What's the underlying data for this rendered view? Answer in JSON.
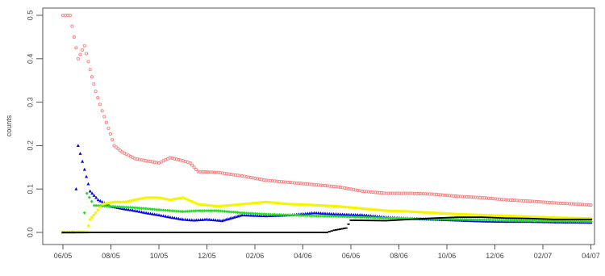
{
  "chart_data": {
    "type": "scatter",
    "title": "",
    "xlabel": "",
    "ylabel": "counts",
    "ylim": [
      0,
      0.5
    ],
    "y_ticks": [
      0.0,
      0.1,
      0.2,
      0.3,
      0.4,
      0.5
    ],
    "y_tick_labels": [
      "0.0",
      "0.1",
      "0.2",
      "0.3",
      "0.4",
      "0.5"
    ],
    "x_ticks": [
      "06/05",
      "08/05",
      "10/05",
      "12/05",
      "02/06",
      "04/06",
      "06/06",
      "08/06",
      "10/06",
      "12/06",
      "02/07",
      "04/07"
    ],
    "grid": false,
    "legend": "none",
    "series": [
      {
        "color": "#ff7a7a",
        "marker": "circle-open",
        "points": [
          [
            "2005-06-01",
            0.5
          ],
          [
            "2005-06-10",
            0.5
          ],
          [
            "2005-06-20",
            0.4
          ],
          [
            "2005-06-28",
            0.43
          ],
          [
            "2005-07-05",
            0.375
          ],
          [
            "2005-07-12",
            0.325
          ],
          [
            "2005-07-20",
            0.28
          ],
          [
            "2005-07-28",
            0.24
          ],
          [
            "2005-08-05",
            0.2
          ],
          [
            "2005-08-15",
            0.185
          ],
          [
            "2005-09-01",
            0.17
          ],
          [
            "2005-09-15",
            0.165
          ],
          [
            "2005-10-01",
            0.16
          ],
          [
            "2005-10-15",
            0.172
          ],
          [
            "2005-11-01",
            0.165
          ],
          [
            "2005-11-10",
            0.16
          ],
          [
            "2005-11-20",
            0.14
          ],
          [
            "2005-12-15",
            0.138
          ],
          [
            "2006-01-15",
            0.13
          ],
          [
            "2006-02-15",
            0.12
          ],
          [
            "2006-03-15",
            0.115
          ],
          [
            "2006-04-15",
            0.11
          ],
          [
            "2006-05-15",
            0.105
          ],
          [
            "2006-06-15",
            0.095
          ],
          [
            "2006-07-15",
            0.09
          ],
          [
            "2006-08-15",
            0.09
          ],
          [
            "2006-09-15",
            0.088
          ],
          [
            "2006-10-15",
            0.083
          ],
          [
            "2006-11-15",
            0.08
          ],
          [
            "2006-12-15",
            0.075
          ],
          [
            "2007-01-15",
            0.072
          ],
          [
            "2007-02-15",
            0.068
          ],
          [
            "2007-03-15",
            0.065
          ],
          [
            "2007-03-31",
            0.063
          ]
        ]
      },
      {
        "color": "#0000ee",
        "marker": "triangle",
        "points": [
          [
            "2005-06-01",
            0.0
          ],
          [
            "2005-06-15",
            0.0
          ],
          [
            "2005-06-20",
            0.2
          ],
          [
            "2005-06-28",
            0.145
          ],
          [
            "2005-07-05",
            0.095
          ],
          [
            "2005-07-15",
            0.075
          ],
          [
            "2005-08-01",
            0.06
          ],
          [
            "2005-08-15",
            0.055
          ],
          [
            "2005-09-01",
            0.05
          ],
          [
            "2005-09-15",
            0.045
          ],
          [
            "2005-10-01",
            0.04
          ],
          [
            "2005-10-15",
            0.035
          ],
          [
            "2005-11-01",
            0.03
          ],
          [
            "2005-11-15",
            0.028
          ],
          [
            "2005-12-01",
            0.03
          ],
          [
            "2005-12-20",
            0.027
          ],
          [
            "2006-01-15",
            0.04
          ],
          [
            "2006-02-15",
            0.038
          ],
          [
            "2006-03-15",
            0.04
          ],
          [
            "2006-04-15",
            0.045
          ],
          [
            "2006-05-15",
            0.042
          ],
          [
            "2006-06-15",
            0.04
          ],
          [
            "2006-07-15",
            0.035
          ],
          [
            "2006-08-15",
            0.032
          ],
          [
            "2006-09-15",
            0.03
          ],
          [
            "2006-10-15",
            0.028
          ],
          [
            "2006-11-15",
            0.026
          ],
          [
            "2006-12-15",
            0.025
          ],
          [
            "2007-01-15",
            0.025
          ],
          [
            "2007-02-15",
            0.024
          ],
          [
            "2007-03-31",
            0.023
          ]
        ]
      },
      {
        "color": "#22dd22",
        "marker": "diamond",
        "points": [
          [
            "2005-06-01",
            0.0
          ],
          [
            "2005-06-25",
            0.0
          ],
          [
            "2005-07-01",
            0.09
          ],
          [
            "2005-07-10",
            0.062
          ],
          [
            "2005-08-01",
            0.06
          ],
          [
            "2005-09-01",
            0.057
          ],
          [
            "2005-10-01",
            0.052
          ],
          [
            "2005-11-01",
            0.048
          ],
          [
            "2005-11-20",
            0.05
          ],
          [
            "2005-12-15",
            0.05
          ],
          [
            "2006-01-15",
            0.045
          ],
          [
            "2006-02-15",
            0.042
          ],
          [
            "2006-03-15",
            0.04
          ],
          [
            "2006-04-15",
            0.038
          ],
          [
            "2006-05-15",
            0.037
          ],
          [
            "2006-06-15",
            0.035
          ],
          [
            "2006-07-15",
            0.033
          ],
          [
            "2006-08-15",
            0.032
          ],
          [
            "2006-09-15",
            0.031
          ],
          [
            "2006-10-15",
            0.03
          ],
          [
            "2006-11-15",
            0.029
          ],
          [
            "2006-12-15",
            0.028
          ],
          [
            "2007-01-15",
            0.027
          ],
          [
            "2007-02-15",
            0.026
          ],
          [
            "2007-03-31",
            0.025
          ]
        ]
      },
      {
        "color": "#f5f500",
        "marker": "square",
        "points": [
          [
            "2005-06-01",
            0.0
          ],
          [
            "2005-07-01",
            0.0
          ],
          [
            "2005-07-05",
            0.03
          ],
          [
            "2005-07-12",
            0.045
          ],
          [
            "2005-07-20",
            0.065
          ],
          [
            "2005-08-05",
            0.07
          ],
          [
            "2005-08-20",
            0.07
          ],
          [
            "2005-09-01",
            0.075
          ],
          [
            "2005-09-15",
            0.08
          ],
          [
            "2005-10-01",
            0.08
          ],
          [
            "2005-10-15",
            0.075
          ],
          [
            "2005-11-01",
            0.08
          ],
          [
            "2005-11-20",
            0.065
          ],
          [
            "2005-12-15",
            0.06
          ],
          [
            "2006-01-15",
            0.065
          ],
          [
            "2006-02-15",
            0.07
          ],
          [
            "2006-03-15",
            0.065
          ],
          [
            "2006-04-15",
            0.063
          ],
          [
            "2006-05-15",
            0.06
          ],
          [
            "2006-06-15",
            0.055
          ],
          [
            "2006-07-15",
            0.05
          ],
          [
            "2006-08-15",
            0.048
          ],
          [
            "2006-09-15",
            0.045
          ],
          [
            "2006-10-15",
            0.042
          ],
          [
            "2006-11-15",
            0.04
          ],
          [
            "2006-12-15",
            0.038
          ],
          [
            "2007-01-15",
            0.036
          ],
          [
            "2007-02-15",
            0.034
          ],
          [
            "2007-03-31",
            0.032
          ]
        ]
      },
      {
        "color": "#000000",
        "marker": "dash",
        "points": [
          [
            "2005-06-01",
            0.0
          ],
          [
            "2005-07-15",
            0.0
          ],
          [
            "2005-09-15",
            0.0
          ],
          [
            "2005-11-15",
            0.0
          ],
          [
            "2006-01-15",
            0.0
          ],
          [
            "2006-03-15",
            0.0
          ],
          [
            "2006-05-01",
            0.0
          ],
          [
            "2006-05-10",
            0.005
          ],
          [
            "2006-05-25",
            0.01
          ],
          [
            "2006-06-01",
            0.028
          ],
          [
            "2006-07-15",
            0.027
          ],
          [
            "2006-08-15",
            0.03
          ],
          [
            "2006-09-15",
            0.033
          ],
          [
            "2006-10-15",
            0.035
          ],
          [
            "2006-11-15",
            0.035
          ],
          [
            "2006-12-15",
            0.033
          ],
          [
            "2007-01-15",
            0.032
          ],
          [
            "2007-02-15",
            0.03
          ],
          [
            "2007-03-31",
            0.03
          ]
        ]
      }
    ]
  }
}
